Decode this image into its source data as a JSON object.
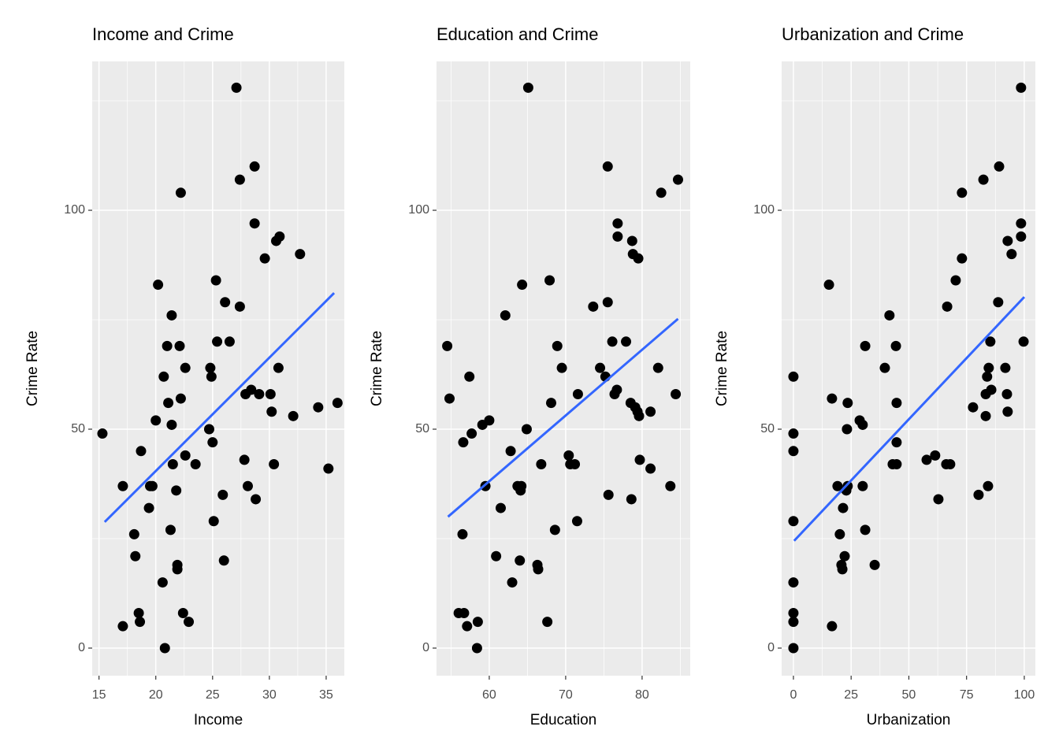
{
  "chart_data": [
    {
      "type": "scatter",
      "title": "Income and Crime",
      "x_label": "Income",
      "y_label": "Crime Rate",
      "xlim": [
        14.4,
        36.6
      ],
      "ylim": [
        -6.3,
        134
      ],
      "xticks": [
        15,
        20,
        25,
        30,
        35
      ],
      "yticks": [
        0,
        50,
        100
      ],
      "grid": true,
      "point_color": "#000000",
      "x": [
        15.3,
        17.1,
        17.1,
        18.1,
        18.2,
        18.5,
        18.6,
        18.7,
        19.4,
        19.5,
        19.7,
        20.0,
        20.2,
        20.6,
        20.8,
        20.7,
        21.0,
        21.1,
        21.3,
        21.4,
        21.4,
        21.5,
        21.8,
        21.9,
        21.9,
        22.1,
        22.2,
        22.2,
        22.4,
        22.6,
        22.6,
        22.9,
        23.5,
        24.7,
        24.8,
        24.9,
        25.0,
        25.1,
        25.3,
        25.4,
        25.9,
        26.0,
        26.1,
        26.5,
        27.1,
        27.4,
        27.4,
        27.8,
        27.9,
        28.1,
        28.4,
        28.7,
        28.7,
        28.8,
        29.1,
        29.6,
        30.1,
        30.2,
        30.4,
        30.6,
        30.8,
        30.9,
        32.1,
        32.7,
        34.3,
        35.2,
        36.0
      ],
      "values": [
        49,
        37,
        5,
        26,
        21,
        8,
        6,
        45,
        32,
        37,
        37,
        52,
        83,
        15,
        0,
        62,
        69,
        56,
        27,
        51,
        76,
        42,
        36,
        19,
        18,
        69,
        104,
        57,
        8,
        64,
        44,
        6,
        42,
        50,
        64,
        62,
        47,
        29,
        84,
        70,
        35,
        20,
        79,
        70,
        128,
        78,
        107,
        43,
        58,
        37,
        59,
        97,
        110,
        34,
        58,
        89,
        58,
        54,
        42,
        93,
        64,
        94,
        53,
        90,
        55,
        41,
        56
      ],
      "trend": {
        "color": "#3366ff",
        "x": [
          15.5,
          35.7
        ],
        "y": [
          28.8,
          81.1
        ]
      }
    },
    {
      "type": "scatter",
      "title": "Education and Crime",
      "x_label": "Education",
      "y_label": "Crime Rate",
      "xlim": [
        53.1,
        86.3
      ],
      "ylim": [
        -6.3,
        134
      ],
      "xticks": [
        60,
        70,
        80
      ],
      "yticks": [
        0,
        50,
        100
      ],
      "grid": true,
      "point_color": "#000000",
      "x": [
        54.5,
        54.8,
        56.0,
        56.5,
        56.6,
        56.7,
        57.1,
        57.4,
        57.7,
        58.4,
        58.5,
        59.1,
        59.5,
        60.0,
        60.9,
        61.5,
        62.1,
        62.8,
        63.0,
        63.7,
        64.0,
        64.1,
        64.2,
        64.3,
        64.9,
        65.1,
        66.3,
        66.4,
        66.8,
        67.6,
        67.9,
        68.1,
        68.6,
        68.9,
        69.5,
        70.4,
        70.6,
        71.2,
        71.5,
        71.6,
        73.6,
        74.5,
        75.2,
        75.5,
        75.5,
        75.6,
        76.1,
        76.4,
        76.7,
        76.8,
        76.8,
        77.9,
        78.5,
        78.6,
        78.7,
        78.8,
        79.1,
        79.4,
        79.5,
        79.7,
        79.6,
        81.1,
        81.1,
        82.1,
        82.5,
        83.7,
        84.4,
        84.7
      ],
      "values": [
        69,
        57,
        8,
        26,
        47,
        8,
        5,
        62,
        49,
        0,
        6,
        51,
        37,
        52,
        21,
        32,
        76,
        45,
        15,
        37,
        20,
        36,
        37,
        83,
        50,
        128,
        19,
        18,
        42,
        6,
        84,
        56,
        27,
        69,
        64,
        44,
        42,
        42,
        29,
        58,
        78,
        64,
        62,
        79,
        110,
        35,
        70,
        58,
        59,
        97,
        94,
        70,
        56,
        34,
        93,
        90,
        55,
        54,
        89,
        43,
        53,
        41,
        54,
        64,
        104,
        37,
        58,
        107
      ],
      "trend": {
        "color": "#3366ff",
        "x": [
          54.6,
          84.7
        ],
        "y": [
          30.0,
          75.2
        ]
      }
    },
    {
      "type": "scatter",
      "title": "Urbanization and Crime",
      "x_label": "Urbanization",
      "y_label": "Crime Rate",
      "xlim": [
        -5.1,
        104.8
      ],
      "ylim": [
        -6.3,
        134
      ],
      "xticks": [
        0,
        25,
        50,
        75,
        100
      ],
      "yticks": [
        0,
        50,
        100
      ],
      "grid": true,
      "point_color": "#000000",
      "x": [
        0,
        0,
        0,
        0,
        0,
        0,
        0,
        0,
        15.4,
        16.7,
        16.7,
        19.1,
        20.1,
        20.8,
        21.2,
        21.5,
        22.2,
        23.2,
        22.9,
        23.5,
        23.5,
        28.7,
        30.0,
        30.0,
        31.1,
        31.1,
        35.2,
        39.6,
        41.6,
        43.0,
        44.4,
        44.7,
        44.7,
        44.7,
        57.7,
        61.4,
        62.8,
        66.2,
        66.6,
        67.9,
        70.3,
        73.0,
        73.0,
        77.8,
        80.2,
        82.3,
        83.3,
        83.3,
        83.9,
        84.3,
        84.6,
        85.3,
        85.7,
        88.7,
        89.1,
        91.8,
        92.5,
        92.8,
        92.8,
        94.5,
        98.6,
        98.6,
        98.6,
        99.7
      ],
      "values": [
        0,
        6,
        8,
        15,
        29,
        45,
        49,
        62,
        83,
        5,
        57,
        37,
        26,
        19,
        18,
        32,
        21,
        50,
        36,
        37,
        56,
        52,
        51,
        37,
        27,
        69,
        19,
        64,
        76,
        42,
        69,
        56,
        47,
        42,
        43,
        44,
        34,
        42,
        78,
        42,
        84,
        89,
        104,
        55,
        35,
        107,
        58,
        53,
        62,
        37,
        64,
        70,
        59,
        79,
        110,
        64,
        58,
        93,
        54,
        90,
        97,
        94,
        128,
        70
      ],
      "trend": {
        "color": "#3366ff",
        "x": [
          0.3,
          100
        ],
        "y": [
          24.5,
          80.2
        ]
      }
    }
  ]
}
